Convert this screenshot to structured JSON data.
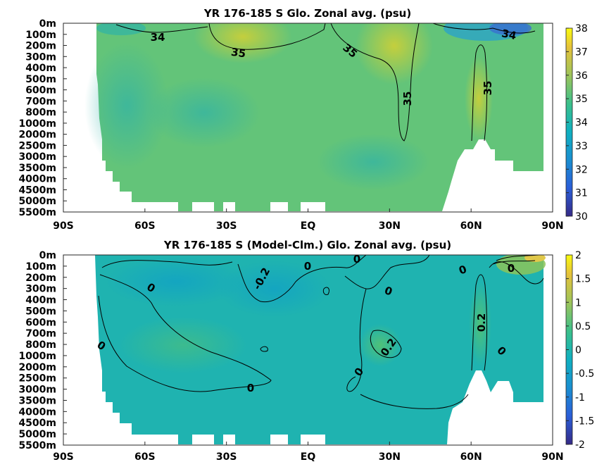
{
  "chart_data": [
    {
      "type": "heatmap",
      "title": "YR 176-185 S Glo. Zonal avg. (psu)",
      "x_ticks": [
        "90S",
        "60S",
        "30S",
        "EQ",
        "30N",
        "60N",
        "90N"
      ],
      "y_ticks": [
        "0m",
        "100m",
        "200m",
        "300m",
        "400m",
        "500m",
        "600m",
        "700m",
        "800m",
        "1000m",
        "2000m",
        "2500m",
        "3000m",
        "3500m",
        "4000m",
        "4500m",
        "5000m",
        "5500m"
      ],
      "xlim": [
        -90,
        90
      ],
      "colorbar": {
        "range": [
          30,
          38
        ],
        "ticks": [
          "38",
          "37",
          "36",
          "35",
          "34",
          "33",
          "32",
          "31",
          "30"
        ]
      },
      "colors": {
        "low": "#3b2aa8",
        "mid": "#1fa8b4",
        "high": "#f7e52b",
        "field": "#5fc67a"
      },
      "contour_labels": [
        {
          "text": "34",
          "lat": -68,
          "depth": "100m"
        },
        {
          "text": "35",
          "lat": -25,
          "depth": "200m"
        },
        {
          "text": "35",
          "lat": 14,
          "depth": "200m"
        },
        {
          "text": "35",
          "lat": 36,
          "depth": "700m"
        },
        {
          "text": "35",
          "lat": 64,
          "depth": "600m"
        },
        {
          "text": "34",
          "lat": 74,
          "depth": "100m"
        }
      ]
    },
    {
      "type": "heatmap",
      "title": "YR 176-185 S (Model-Clm.) Glo. Zonal avg. (psu)",
      "x_ticks": [
        "90S",
        "60S",
        "30S",
        "EQ",
        "30N",
        "60N",
        "90N"
      ],
      "y_ticks": [
        "0m",
        "100m",
        "200m",
        "300m",
        "400m",
        "500m",
        "600m",
        "700m",
        "800m",
        "1000m",
        "2000m",
        "2500m",
        "3000m",
        "3500m",
        "4000m",
        "4500m",
        "5000m",
        "5500m"
      ],
      "xlim": [
        -90,
        90
      ],
      "colorbar": {
        "range": [
          -2,
          2
        ],
        "ticks": [
          "2",
          "1.5",
          "1",
          "0.5",
          "0",
          "-0.5",
          "-1",
          "-1.5",
          "-2"
        ]
      },
      "colors": {
        "low": "#3b2aa8",
        "mid": "#1fb3b0",
        "high": "#f7e52b",
        "field": "#1fb3b0"
      },
      "contour_labels": [
        {
          "text": "0",
          "lat": -3,
          "depth": "100m"
        },
        {
          "text": "0",
          "lat": 14,
          "depth": "0m"
        },
        {
          "text": "0",
          "lat": -46,
          "depth": "300m"
        },
        {
          "text": "-0.2",
          "lat": -21,
          "depth": "300m"
        },
        {
          "text": "0",
          "lat": 22,
          "depth": "300m"
        },
        {
          "text": "0",
          "lat": 51,
          "depth": "100m"
        },
        {
          "text": "0",
          "lat": 70,
          "depth": "100m"
        },
        {
          "text": "0.2",
          "lat": 62,
          "depth": "600m"
        },
        {
          "text": "0",
          "lat": -75,
          "depth": "1000m"
        },
        {
          "text": "0.2",
          "lat": 25,
          "depth": "1000m"
        },
        {
          "text": "0",
          "lat": 68,
          "depth": "1000m"
        },
        {
          "text": "0",
          "lat": 17,
          "depth": "2000m"
        },
        {
          "text": "0",
          "lat": -20,
          "depth": "2500m"
        }
      ]
    }
  ]
}
